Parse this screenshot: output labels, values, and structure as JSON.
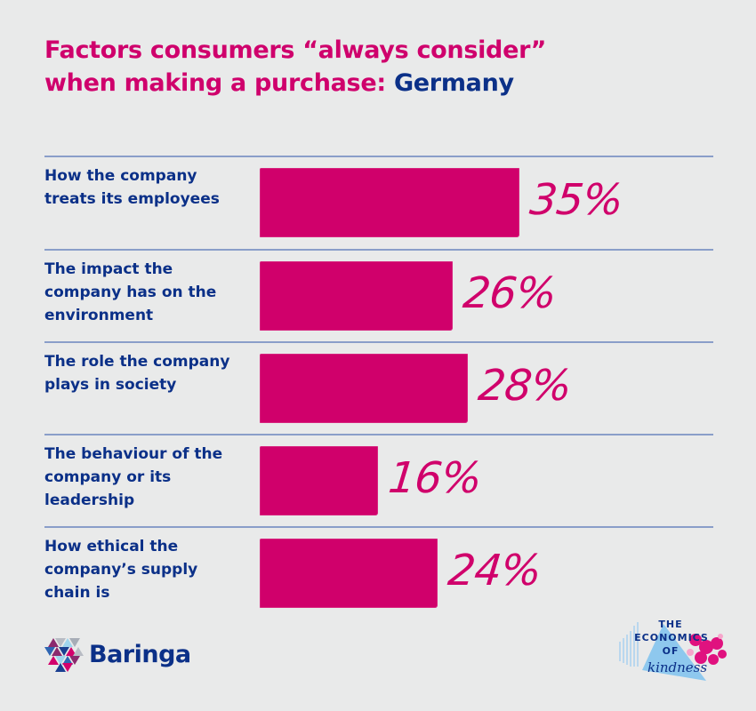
{
  "title": {
    "line1": "Factors consumers “always consider”",
    "line2_prefix": "when making a purchase: ",
    "country": "Germany"
  },
  "colors": {
    "background": "#e9eaea",
    "accent_magenta": "#d0006b",
    "text_navy": "#0b3088",
    "separator": "#8a9ec9"
  },
  "rows": [
    {
      "label": "How the company treats its employees",
      "value_label": "35%"
    },
    {
      "label": "The impact the company has on the environment",
      "value_label": "26%"
    },
    {
      "label": "The role the company plays in society",
      "value_label": "28%"
    },
    {
      "label": "The behaviour of the company or its leadership",
      "value_label": "16%"
    },
    {
      "label": "How ethical the company’s supply chain is",
      "value_label": "24%"
    }
  ],
  "footer": {
    "brand_logo_text": "Baringa",
    "campaign_logo": {
      "line1": "THE",
      "line2": "ECONOMICS",
      "line3": "OF",
      "line4": "kindness"
    }
  },
  "chart_data": {
    "type": "bar",
    "orientation": "horizontal",
    "title": "Factors consumers “always consider” when making a purchase: Germany",
    "categories": [
      "How the company treats its employees",
      "The impact the company has on the environment",
      "The role the company plays in society",
      "The behaviour of the company or its leadership",
      "How ethical the company’s supply chain is"
    ],
    "values": [
      35,
      26,
      28,
      16,
      24
    ],
    "unit": "%",
    "xlabel": "",
    "ylabel": "",
    "xlim": [
      0,
      100
    ],
    "grid": false,
    "legend": null,
    "data_labels": true
  }
}
